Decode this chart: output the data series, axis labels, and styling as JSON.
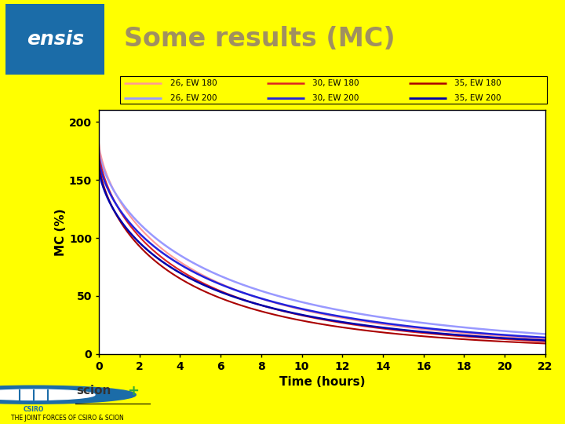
{
  "title": "Some results (MC)",
  "title_color": "#A09060",
  "xlabel": "Time (hours)",
  "ylabel": "MC (%)",
  "background_color": "#FFFF00",
  "plot_bg_color": "#FFFFFF",
  "header_bg": "#FFFFFF",
  "ensis_bg": "#1B6CA8",
  "xlim": [
    0,
    22
  ],
  "ylim": [
    0,
    210
  ],
  "xticks": [
    0,
    2,
    4,
    6,
    8,
    10,
    12,
    14,
    16,
    18,
    20,
    22
  ],
  "yticks": [
    0,
    50,
    100,
    150,
    200
  ],
  "curves": [
    {
      "label": "26, EW 180",
      "color": "#FF9999",
      "lw": 1.5,
      "mc0": 180,
      "k": 0.32,
      "n": 0.7,
      "mc_eq": 2
    },
    {
      "label": "26, EW 200",
      "color": "#9999FF",
      "lw": 1.8,
      "mc0": 174,
      "k": 0.28,
      "n": 0.7,
      "mc_eq": 2
    },
    {
      "label": "30, EW 180",
      "color": "#DD2222",
      "lw": 1.5,
      "mc0": 172,
      "k": 0.34,
      "n": 0.7,
      "mc_eq": 2
    },
    {
      "label": "30, EW 200",
      "color": "#2222DD",
      "lw": 1.8,
      "mc0": 166,
      "k": 0.3,
      "n": 0.7,
      "mc_eq": 2
    },
    {
      "label": "35, EW 180",
      "color": "#AA0000",
      "lw": 1.5,
      "mc0": 163,
      "k": 0.36,
      "n": 0.7,
      "mc_eq": 2
    },
    {
      "label": "35, EW 200",
      "color": "#0000AA",
      "lw": 1.8,
      "mc0": 158,
      "k": 0.32,
      "n": 0.7,
      "mc_eq": 2
    }
  ],
  "legend_row1": [
    {
      "label": "26, EW 180",
      "color": "#FF9999"
    },
    {
      "label": "30, EW 180",
      "color": "#DD2222"
    },
    {
      "label": "35, EW 180",
      "color": "#AA0000"
    }
  ],
  "legend_row2": [
    {
      "label": "26, EW 200",
      "color": "#9999FF"
    },
    {
      "label": "30, EW 200",
      "color": "#2222DD"
    },
    {
      "label": "35, EW 200",
      "color": "#0000AA"
    }
  ]
}
